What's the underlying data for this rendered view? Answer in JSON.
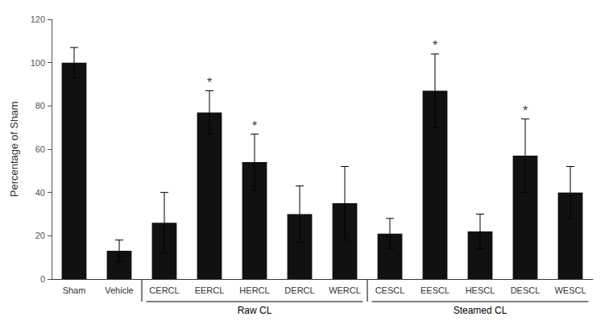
{
  "chart_data": {
    "type": "bar",
    "categories": [
      "Sham",
      "Vehicle",
      "CERCL",
      "EERCL",
      "HERCL",
      "DERCL",
      "WERCL",
      "CESCL",
      "EESCL",
      "HESCL",
      "DESCL",
      "WESCL"
    ],
    "values": [
      100,
      13,
      26,
      77,
      54,
      30,
      35,
      21,
      87,
      22,
      57,
      40
    ],
    "errors": [
      7,
      5,
      14,
      10,
      13,
      13,
      17,
      7,
      17,
      8,
      17,
      12
    ],
    "color": "#111111",
    "ylabel": "Percentage of Sham",
    "ylim": [
      0,
      120
    ],
    "yticks": [
      0,
      20,
      40,
      60,
      80,
      100,
      120
    ],
    "grid": false,
    "annotations": [
      {
        "text": "*",
        "category": "EERCL"
      },
      {
        "text": "*",
        "category": "HERCL"
      },
      {
        "text": "*",
        "category": "EESCL"
      },
      {
        "text": "*",
        "category": "DESCL"
      }
    ],
    "groups": [
      {
        "label": "Raw CL",
        "categories": [
          "CERCL",
          "EERCL",
          "HERCL",
          "DERCL",
          "WERCL"
        ]
      },
      {
        "label": "Steamed CL",
        "categories": [
          "CESCL",
          "EESCL",
          "HESCL",
          "DESCL",
          "WESCL"
        ]
      }
    ]
  }
}
